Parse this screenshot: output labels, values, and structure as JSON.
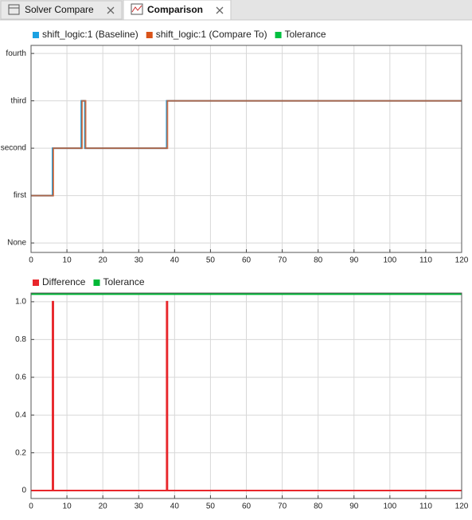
{
  "tabs": [
    {
      "label": "Solver Compare"
    },
    {
      "label": "Comparison"
    }
  ],
  "chart_data": [
    {
      "type": "line",
      "series": [
        {
          "name": "shift_logic:1 (Baseline)",
          "color": "#1ba1e2",
          "x": [
            0,
            6,
            6,
            14,
            14,
            15,
            15,
            37.8,
            37.8,
            120
          ],
          "values": [
            1,
            1,
            2,
            2,
            3,
            3,
            2,
            2,
            3,
            3
          ]
        },
        {
          "name": "shift_logic:1 (Compare To)",
          "color": "#d95319",
          "x": [
            0,
            6.2,
            6.2,
            14.2,
            14.2,
            15.2,
            15.2,
            38,
            38,
            120
          ],
          "values": [
            1,
            1,
            2,
            2,
            3,
            3,
            2,
            2,
            3,
            3
          ]
        },
        {
          "name": "Tolerance",
          "color": "#00c040"
        }
      ],
      "xlim": [
        0,
        120
      ],
      "xticks": [
        0,
        10,
        20,
        30,
        40,
        50,
        60,
        70,
        80,
        90,
        100,
        110,
        120
      ],
      "ylim": [
        -0.2,
        4.17
      ],
      "yticks": [
        {
          "value": 0,
          "label": "None"
        },
        {
          "value": 1,
          "label": "first"
        },
        {
          "value": 2,
          "label": "second"
        },
        {
          "value": 3,
          "label": "third"
        },
        {
          "value": 4,
          "label": "fourth"
        }
      ],
      "grid": true
    },
    {
      "type": "line",
      "series": [
        {
          "name": "Difference",
          "color": "#e8262b",
          "x": [
            0,
            6,
            6,
            6.2,
            6.2,
            37.8,
            37.8,
            38,
            38,
            120
          ],
          "values": [
            0,
            0,
            1,
            1,
            0,
            0,
            1,
            1,
            0,
            0
          ]
        },
        {
          "name": "Tolerance",
          "color": "#00b836",
          "x": [
            0,
            120
          ],
          "values": [
            1.04,
            1.04
          ]
        }
      ],
      "xlim": [
        0,
        120
      ],
      "xticks": [
        0,
        10,
        20,
        30,
        40,
        50,
        60,
        70,
        80,
        90,
        100,
        110,
        120
      ],
      "ylim": [
        -0.042,
        1.046
      ],
      "yticks": [
        0,
        0.2,
        0.4,
        0.6,
        0.8,
        {
          "value": 1,
          "label": "1.0"
        }
      ],
      "grid": true
    }
  ]
}
